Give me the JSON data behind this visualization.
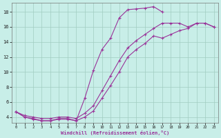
{
  "xlabel": "Windchill (Refroidissement éolien,°C)",
  "bg_color": "#c8eee8",
  "grid_color": "#a0ccc0",
  "line_color": "#993399",
  "xlim": [
    -0.5,
    23.5
  ],
  "ylim": [
    3.2,
    19.2
  ],
  "xticks": [
    0,
    1,
    2,
    3,
    4,
    5,
    6,
    7,
    8,
    9,
    10,
    11,
    12,
    13,
    14,
    15,
    16,
    17,
    18,
    19,
    20,
    21,
    22,
    23
  ],
  "yticks": [
    4,
    6,
    8,
    10,
    12,
    14,
    16,
    18
  ],
  "curve1_x": [
    0,
    1,
    2,
    3,
    4,
    5,
    6,
    7,
    8,
    9,
    10,
    11,
    12,
    13,
    14,
    15,
    16,
    17
  ],
  "curve1_y": [
    4.7,
    4.0,
    3.7,
    3.5,
    3.5,
    3.7,
    3.7,
    3.5,
    6.5,
    10.2,
    13.0,
    14.5,
    17.2,
    18.3,
    18.4,
    18.5,
    18.7,
    18.0
  ],
  "curve2_x": [
    0,
    1,
    2,
    3,
    4,
    5,
    6,
    7,
    8,
    9,
    10,
    11,
    12,
    13,
    14,
    15,
    16,
    17,
    18,
    19,
    20,
    21,
    22,
    23
  ],
  "curve2_y": [
    4.7,
    4.2,
    4.0,
    3.8,
    3.8,
    4.0,
    4.0,
    3.8,
    4.5,
    5.5,
    7.5,
    9.5,
    11.5,
    13.2,
    14.2,
    15.0,
    15.8,
    16.5,
    16.5,
    16.5,
    16.0,
    16.5,
    16.5,
    16.0
  ],
  "curve3_x": [
    0,
    1,
    2,
    3,
    4,
    5,
    6,
    7,
    8,
    9,
    10,
    11,
    12,
    13,
    14,
    15,
    16,
    17,
    18,
    19,
    20,
    21,
    22,
    23
  ],
  "curve3_y": [
    4.7,
    4.0,
    3.8,
    3.5,
    3.5,
    3.8,
    3.8,
    3.5,
    4.0,
    4.8,
    6.5,
    8.2,
    10.0,
    12.0,
    13.0,
    13.8,
    14.8,
    14.5,
    15.0,
    15.5,
    15.8,
    16.5,
    16.5,
    16.0
  ]
}
